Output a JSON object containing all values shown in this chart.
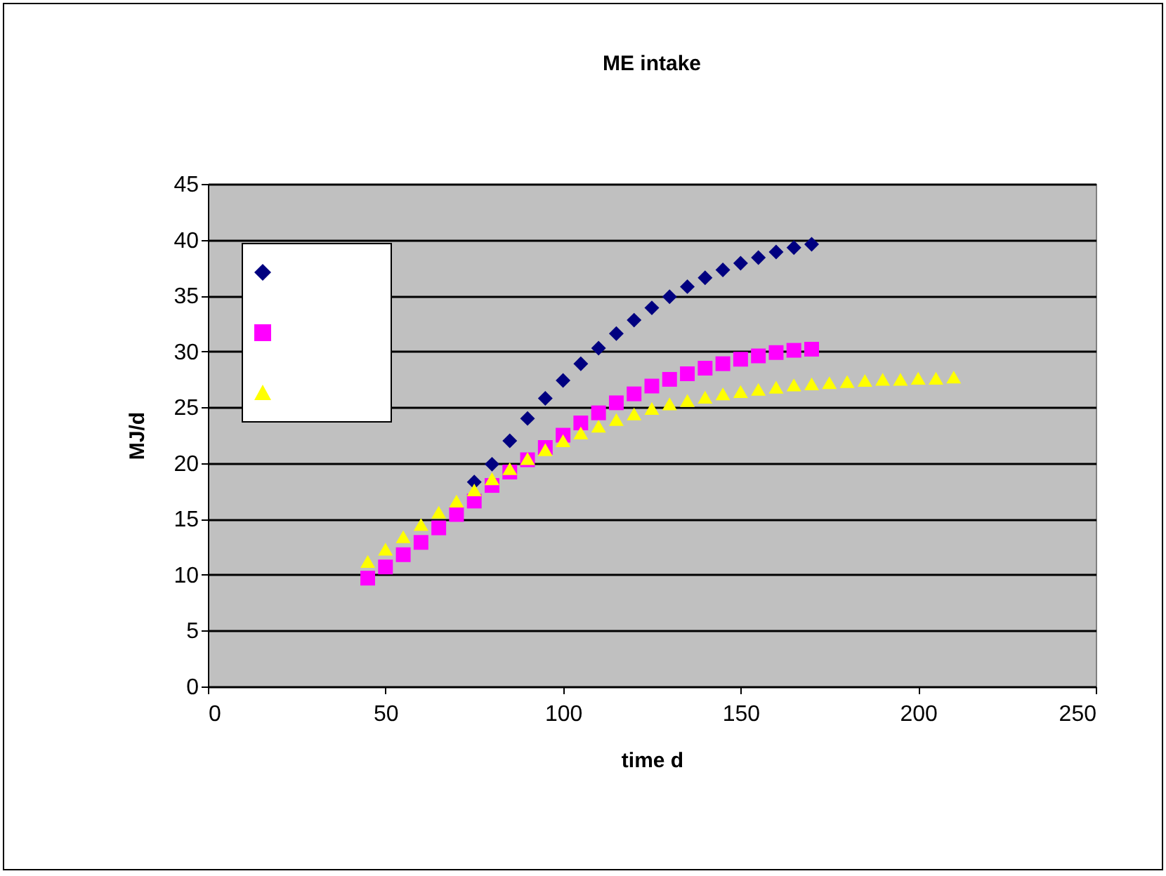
{
  "chart_data": {
    "type": "scatter",
    "title": "ME intake",
    "xlabel": "time d",
    "ylabel": "MJ/d",
    "xlim": [
      0,
      250
    ],
    "xticks": [
      0,
      50,
      100,
      150,
      200,
      250
    ],
    "ylim": [
      0,
      45
    ],
    "yticks": [
      0,
      5,
      10,
      15,
      20,
      25,
      30,
      35,
      40,
      45
    ],
    "grid": "y",
    "series": [
      {
        "color": "#000080",
        "marker": "diamond",
        "x": [
          75,
          80,
          85,
          90,
          95,
          100,
          105,
          110,
          115,
          120,
          125,
          130,
          135,
          140,
          145,
          150,
          155,
          160,
          165,
          170
        ],
        "values": [
          18.3,
          19.9,
          22.0,
          24.0,
          25.8,
          27.4,
          28.9,
          30.3,
          31.6,
          32.8,
          33.9,
          34.9,
          35.8,
          36.6,
          37.3,
          37.9,
          38.4,
          38.9,
          39.3,
          39.6
        ]
      },
      {
        "color": "#ff00ff",
        "marker": "square",
        "x": [
          45,
          50,
          55,
          60,
          65,
          70,
          75,
          80,
          85,
          90,
          95,
          100,
          105,
          110,
          115,
          120,
          125,
          130,
          135,
          140,
          145,
          150,
          155,
          160,
          165,
          170
        ],
        "values": [
          9.7,
          10.7,
          11.8,
          12.9,
          14.2,
          15.4,
          16.6,
          18.0,
          19.2,
          20.3,
          21.4,
          22.5,
          23.6,
          24.5,
          25.4,
          26.2,
          26.9,
          27.5,
          28.0,
          28.5,
          28.9,
          29.3,
          29.6,
          29.9,
          30.1,
          30.2
        ]
      },
      {
        "color": "#ffff00",
        "marker": "triangle",
        "x": [
          45,
          50,
          55,
          60,
          65,
          70,
          75,
          80,
          85,
          90,
          95,
          100,
          105,
          110,
          115,
          120,
          125,
          130,
          135,
          140,
          145,
          150,
          155,
          160,
          165,
          170,
          175,
          180,
          185,
          190,
          195,
          200,
          205,
          210
        ],
        "values": [
          11.2,
          12.3,
          13.4,
          14.5,
          15.6,
          16.6,
          17.6,
          18.6,
          19.5,
          20.4,
          21.2,
          22.0,
          22.7,
          23.3,
          23.9,
          24.4,
          24.9,
          25.3,
          25.6,
          25.9,
          26.2,
          26.4,
          26.6,
          26.8,
          27.0,
          27.1,
          27.2,
          27.3,
          27.4,
          27.5,
          27.5,
          27.6,
          27.6,
          27.7
        ]
      }
    ]
  }
}
